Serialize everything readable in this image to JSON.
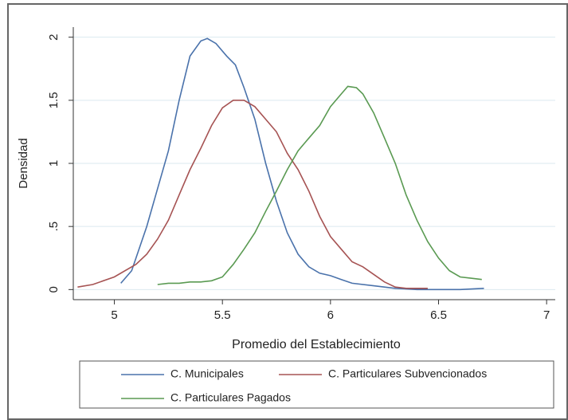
{
  "chart_data": {
    "type": "line",
    "xlabel": "Promedio del Establecimiento",
    "ylabel": "Densidad",
    "xlim": [
      4.81,
      7.04
    ],
    "ylim": [
      -0.08,
      2.08
    ],
    "xticks": [
      5,
      5.5,
      6,
      6.5,
      7
    ],
    "yticks": [
      0,
      {
        "value": 0.5,
        "label": ".5"
      },
      1,
      1.5,
      2
    ],
    "grid": true,
    "legend": "bottom",
    "series": [
      {
        "name": "C. Municipales",
        "color": "#4a72ab",
        "x": [
          5.03,
          5.08,
          5.15,
          5.2,
          5.25,
          5.3,
          5.35,
          5.4,
          5.43,
          5.47,
          5.52,
          5.56,
          5.6,
          5.65,
          5.7,
          5.75,
          5.8,
          5.85,
          5.9,
          5.95,
          6.0,
          6.05,
          6.1,
          6.2,
          6.3,
          6.4,
          6.6,
          6.71
        ],
        "values": [
          0.05,
          0.15,
          0.5,
          0.8,
          1.1,
          1.5,
          1.85,
          1.97,
          1.99,
          1.95,
          1.85,
          1.78,
          1.6,
          1.35,
          1.0,
          0.7,
          0.45,
          0.28,
          0.18,
          0.13,
          0.11,
          0.08,
          0.05,
          0.03,
          0.01,
          0,
          0,
          0.01
        ]
      },
      {
        "name": "C. Particulares Subvencionados",
        "color": "#a65353",
        "x": [
          4.83,
          4.9,
          5.0,
          5.1,
          5.15,
          5.2,
          5.25,
          5.3,
          5.35,
          5.4,
          5.45,
          5.5,
          5.55,
          5.6,
          5.65,
          5.7,
          5.75,
          5.8,
          5.85,
          5.9,
          5.95,
          6.0,
          6.05,
          6.1,
          6.15,
          6.2,
          6.25,
          6.3,
          6.35,
          6.45
        ],
        "values": [
          0.02,
          0.04,
          0.1,
          0.2,
          0.28,
          0.4,
          0.55,
          0.75,
          0.95,
          1.12,
          1.3,
          1.44,
          1.5,
          1.5,
          1.45,
          1.35,
          1.25,
          1.08,
          0.95,
          0.78,
          0.58,
          0.42,
          0.32,
          0.22,
          0.18,
          0.12,
          0.06,
          0.02,
          0.01,
          0.01
        ]
      },
      {
        "name": "C. Particulares Pagados",
        "color": "#5a9a52",
        "x": [
          5.2,
          5.25,
          5.3,
          5.35,
          5.4,
          5.45,
          5.5,
          5.55,
          5.6,
          5.65,
          5.7,
          5.75,
          5.8,
          5.85,
          5.9,
          5.95,
          6.0,
          6.05,
          6.08,
          6.12,
          6.15,
          6.2,
          6.25,
          6.3,
          6.35,
          6.4,
          6.45,
          6.5,
          6.55,
          6.6,
          6.65,
          6.7
        ],
        "values": [
          0.04,
          0.05,
          0.05,
          0.06,
          0.06,
          0.07,
          0.1,
          0.2,
          0.32,
          0.45,
          0.62,
          0.78,
          0.95,
          1.1,
          1.2,
          1.3,
          1.45,
          1.55,
          1.61,
          1.6,
          1.55,
          1.4,
          1.2,
          1.0,
          0.75,
          0.55,
          0.38,
          0.25,
          0.15,
          0.1,
          0.09,
          0.08
        ]
      }
    ]
  }
}
